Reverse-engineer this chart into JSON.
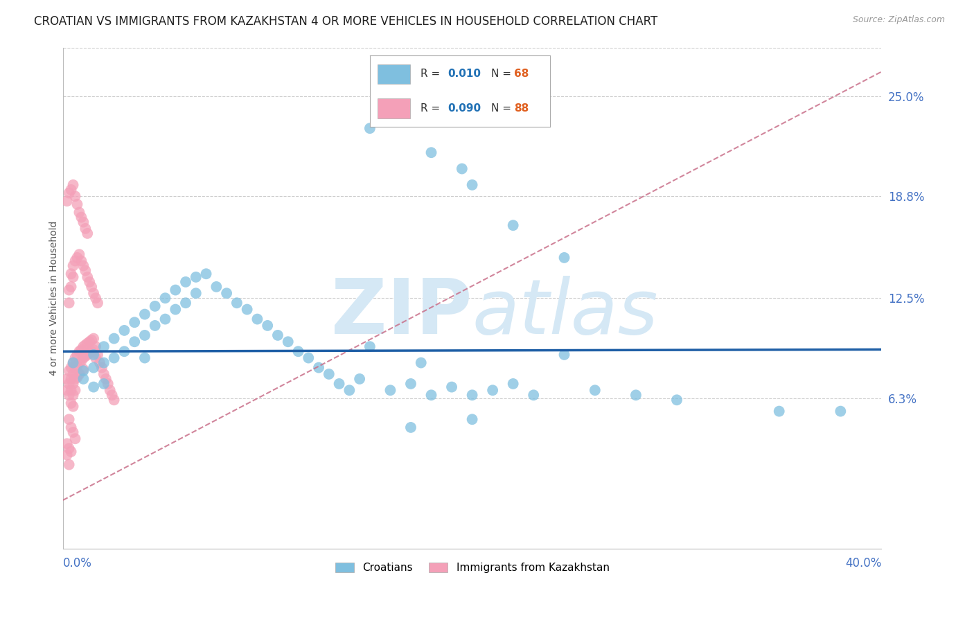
{
  "title": "CROATIAN VS IMMIGRANTS FROM KAZAKHSTAN 4 OR MORE VEHICLES IN HOUSEHOLD CORRELATION CHART",
  "source": "Source: ZipAtlas.com",
  "xlabel_bottom_left": "0.0%",
  "xlabel_bottom_right": "40.0%",
  "ylabel": "4 or more Vehicles in Household",
  "ytick_labels": [
    "6.3%",
    "12.5%",
    "18.8%",
    "25.0%"
  ],
  "ytick_values": [
    0.063,
    0.125,
    0.188,
    0.25
  ],
  "xlim": [
    0.0,
    0.4
  ],
  "ylim": [
    -0.03,
    0.28
  ],
  "legend1_label": "Croatians",
  "legend2_label": "Immigrants from Kazakhstan",
  "R1": 0.01,
  "N1": 68,
  "R2": 0.09,
  "N2": 88,
  "blue_color": "#7fbfdf",
  "pink_color": "#f4a0b8",
  "trend_blue_color": "#1f5fa6",
  "trend_pink_color": "#c9708a",
  "watermark_color": "#d5e8f5",
  "blue_line_y": 0.092,
  "blue_line_slope": 0.003,
  "pink_line_x0": 0.0,
  "pink_line_y0": 0.0,
  "pink_line_x1": 0.4,
  "pink_line_y1": 0.265,
  "blue_scatter_x": [
    0.005,
    0.01,
    0.01,
    0.015,
    0.015,
    0.015,
    0.02,
    0.02,
    0.02,
    0.025,
    0.025,
    0.03,
    0.03,
    0.035,
    0.035,
    0.04,
    0.04,
    0.04,
    0.045,
    0.045,
    0.05,
    0.05,
    0.055,
    0.055,
    0.06,
    0.06,
    0.065,
    0.065,
    0.07,
    0.075,
    0.08,
    0.085,
    0.09,
    0.095,
    0.1,
    0.105,
    0.11,
    0.115,
    0.12,
    0.125,
    0.13,
    0.135,
    0.14,
    0.145,
    0.15,
    0.16,
    0.17,
    0.175,
    0.18,
    0.19,
    0.2,
    0.21,
    0.22,
    0.23,
    0.245,
    0.26,
    0.28,
    0.3,
    0.35,
    0.38,
    0.15,
    0.18,
    0.195,
    0.2,
    0.22,
    0.245,
    0.2,
    0.17
  ],
  "blue_scatter_y": [
    0.085,
    0.08,
    0.075,
    0.09,
    0.082,
    0.07,
    0.095,
    0.085,
    0.072,
    0.1,
    0.088,
    0.105,
    0.092,
    0.11,
    0.098,
    0.115,
    0.102,
    0.088,
    0.12,
    0.108,
    0.125,
    0.112,
    0.13,
    0.118,
    0.135,
    0.122,
    0.138,
    0.128,
    0.14,
    0.132,
    0.128,
    0.122,
    0.118,
    0.112,
    0.108,
    0.102,
    0.098,
    0.092,
    0.088,
    0.082,
    0.078,
    0.072,
    0.068,
    0.075,
    0.095,
    0.068,
    0.072,
    0.085,
    0.065,
    0.07,
    0.065,
    0.068,
    0.072,
    0.065,
    0.09,
    0.068,
    0.065,
    0.062,
    0.055,
    0.055,
    0.23,
    0.215,
    0.205,
    0.195,
    0.17,
    0.15,
    0.05,
    0.045
  ],
  "pink_scatter_x": [
    0.002,
    0.002,
    0.003,
    0.003,
    0.003,
    0.004,
    0.004,
    0.004,
    0.004,
    0.005,
    0.005,
    0.005,
    0.005,
    0.005,
    0.006,
    0.006,
    0.006,
    0.006,
    0.007,
    0.007,
    0.007,
    0.008,
    0.008,
    0.008,
    0.009,
    0.009,
    0.01,
    0.01,
    0.01,
    0.011,
    0.011,
    0.012,
    0.012,
    0.013,
    0.013,
    0.014,
    0.014,
    0.015,
    0.015,
    0.016,
    0.016,
    0.017,
    0.018,
    0.019,
    0.02,
    0.021,
    0.022,
    0.023,
    0.024,
    0.025,
    0.003,
    0.003,
    0.004,
    0.004,
    0.005,
    0.005,
    0.006,
    0.007,
    0.008,
    0.009,
    0.01,
    0.011,
    0.012,
    0.013,
    0.014,
    0.015,
    0.016,
    0.017,
    0.002,
    0.003,
    0.004,
    0.005,
    0.006,
    0.007,
    0.008,
    0.009,
    0.01,
    0.011,
    0.012,
    0.003,
    0.004,
    0.005,
    0.006,
    0.002,
    0.003,
    0.004,
    0.002,
    0.003
  ],
  "pink_scatter_y": [
    0.075,
    0.068,
    0.08,
    0.072,
    0.065,
    0.082,
    0.075,
    0.068,
    0.06,
    0.085,
    0.078,
    0.072,
    0.065,
    0.058,
    0.088,
    0.082,
    0.075,
    0.068,
    0.09,
    0.083,
    0.076,
    0.092,
    0.085,
    0.078,
    0.093,
    0.086,
    0.095,
    0.088,
    0.081,
    0.096,
    0.089,
    0.097,
    0.09,
    0.098,
    0.091,
    0.099,
    0.092,
    0.1,
    0.093,
    0.095,
    0.088,
    0.09,
    0.085,
    0.082,
    0.078,
    0.075,
    0.072,
    0.068,
    0.065,
    0.062,
    0.13,
    0.122,
    0.14,
    0.132,
    0.145,
    0.138,
    0.148,
    0.15,
    0.152,
    0.148,
    0.145,
    0.142,
    0.138,
    0.135,
    0.132,
    0.128,
    0.125,
    0.122,
    0.185,
    0.19,
    0.192,
    0.195,
    0.188,
    0.183,
    0.178,
    0.175,
    0.172,
    0.168,
    0.165,
    0.05,
    0.045,
    0.042,
    0.038,
    0.035,
    0.032,
    0.03,
    0.028,
    0.022
  ]
}
